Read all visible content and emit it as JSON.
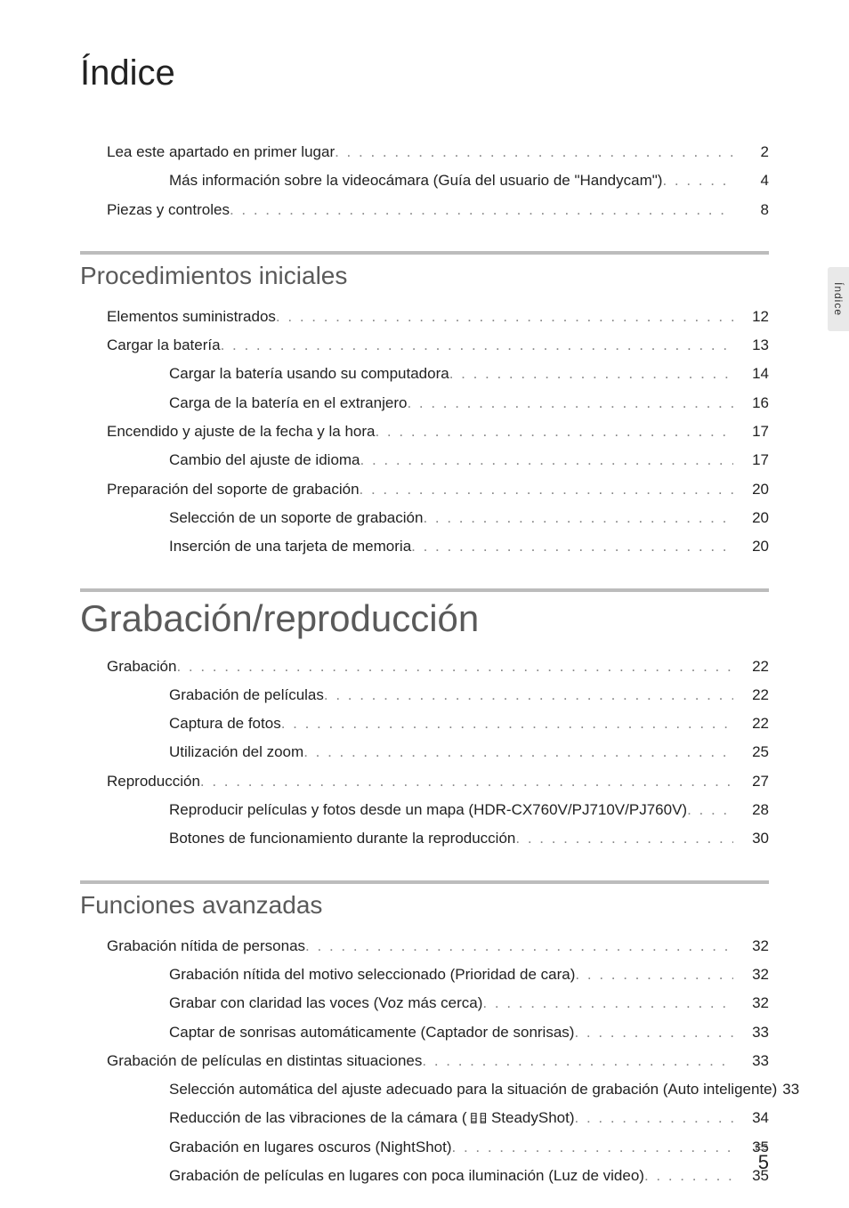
{
  "title": "Índice",
  "sideTab": "Índice",
  "footer": {
    "langCode": "ES",
    "pageNum": "5"
  },
  "intro": [
    {
      "level": 0,
      "label": "Lea este apartado en primer lugar",
      "page": "2"
    },
    {
      "level": 1,
      "label": "Más información sobre la videocámara (Guía del usuario de \"Handycam\")",
      "page": "4"
    },
    {
      "level": 0,
      "label": "Piezas y controles",
      "page": "8"
    }
  ],
  "sections": [
    {
      "heading": "Procedimientos iniciales",
      "headingStyle": "normal",
      "items": [
        {
          "level": 0,
          "label": "Elementos suministrados",
          "page": "12"
        },
        {
          "level": 0,
          "label": "Cargar la batería",
          "page": "13"
        },
        {
          "level": 1,
          "label": "Cargar la batería usando su computadora",
          "page": "14"
        },
        {
          "level": 1,
          "label": "Carga de la batería en el extranjero",
          "page": "16"
        },
        {
          "level": 0,
          "label": "Encendido y ajuste de la fecha y la hora",
          "page": "17"
        },
        {
          "level": 1,
          "label": "Cambio del ajuste de idioma",
          "page": "17"
        },
        {
          "level": 0,
          "label": "Preparación del soporte de grabación",
          "page": "20"
        },
        {
          "level": 1,
          "label": "Selección de un soporte de grabación",
          "page": "20"
        },
        {
          "level": 1,
          "label": "Inserción de una tarjeta de memoria",
          "page": "20"
        }
      ]
    },
    {
      "heading": "Grabación/reproducción",
      "headingStyle": "large",
      "items": [
        {
          "level": 0,
          "label": "Grabación",
          "page": "22"
        },
        {
          "level": 1,
          "label": "Grabación de películas",
          "page": "22"
        },
        {
          "level": 1,
          "label": "Captura de fotos",
          "page": "22"
        },
        {
          "level": 1,
          "label": "Utilización del zoom",
          "page": "25"
        },
        {
          "level": 0,
          "label": "Reproducción",
          "page": "27"
        },
        {
          "level": 1,
          "label": "Reproducir películas y fotos desde un mapa (HDR-CX760V/PJ710V/PJ760V)",
          "page": "28"
        },
        {
          "level": 1,
          "label": "Botones de funcionamiento durante la reproducción",
          "page": "30"
        }
      ]
    },
    {
      "heading": "Funciones avanzadas",
      "headingStyle": "normal",
      "items": [
        {
          "level": 0,
          "label": "Grabación nítida de personas",
          "page": "32"
        },
        {
          "level": 1,
          "label": "Grabación nítida del motivo seleccionado (Prioridad de cara)",
          "page": "32"
        },
        {
          "level": 1,
          "label": "Grabar con claridad las voces (Voz más cerca)",
          "page": "32"
        },
        {
          "level": 1,
          "label": "Captar de sonrisas automáticamente (Captador de sonrisas)",
          "page": "33"
        },
        {
          "level": 0,
          "label": "Grabación de películas en distintas situaciones",
          "page": "33"
        },
        {
          "level": 1,
          "label": "Selección automática del ajuste adecuado para la situación de grabación (Auto inteligente)",
          "page": "33"
        },
        {
          "level": 1,
          "label": "Reducción de las vibraciones de la cámara ( ",
          "icon": "steadyshot",
          "label2": " SteadyShot)",
          "page": "34"
        },
        {
          "level": 1,
          "label": "Grabación en lugares oscuros (NightShot)",
          "page": "35"
        },
        {
          "level": 1,
          "label": "Grabación de películas en lugares con poca iluminación (Luz de video)",
          "page": "35"
        }
      ]
    }
  ]
}
